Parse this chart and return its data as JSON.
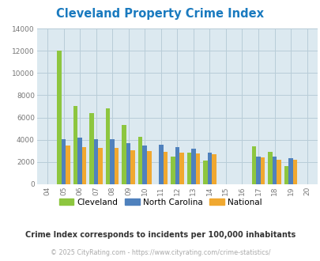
{
  "title": "Cleveland Property Crime Index",
  "title_color": "#1a7abf",
  "years": [
    2004,
    2005,
    2006,
    2007,
    2008,
    2009,
    2010,
    2011,
    2012,
    2013,
    2014,
    2015,
    2016,
    2017,
    2018,
    2019,
    2020
  ],
  "year_labels": [
    "04",
    "05",
    "06",
    "07",
    "08",
    "09",
    "10",
    "11",
    "12",
    "13",
    "14",
    "15",
    "16",
    "17",
    "18",
    "19",
    "20"
  ],
  "cleveland": [
    0,
    12000,
    7000,
    6400,
    6850,
    5300,
    4250,
    0,
    2450,
    2800,
    2100,
    0,
    0,
    3400,
    2900,
    1650,
    0
  ],
  "north_carolina": [
    0,
    4050,
    4150,
    4050,
    4050,
    3700,
    3450,
    3550,
    3350,
    3150,
    2850,
    0,
    0,
    2450,
    2500,
    2350,
    0
  ],
  "national": [
    0,
    3450,
    3300,
    3250,
    3250,
    3050,
    3000,
    2900,
    2800,
    2750,
    2650,
    0,
    0,
    2400,
    2200,
    2200,
    0
  ],
  "cleveland_color": "#8dc63f",
  "nc_color": "#4f81bd",
  "national_color": "#f0a830",
  "bg_color": "#dce9f0",
  "plot_bg": "#ffffff",
  "ylim": [
    0,
    14000
  ],
  "yticks": [
    0,
    2000,
    4000,
    6000,
    8000,
    10000,
    12000,
    14000
  ],
  "grid_color": "#b8cdd8",
  "subtitle": "Crime Index corresponds to incidents per 100,000 inhabitants",
  "footer": "© 2025 CityRating.com - https://www.cityrating.com/crime-statistics/",
  "footer_color": "#aaaaaa",
  "subtitle_color": "#333333"
}
